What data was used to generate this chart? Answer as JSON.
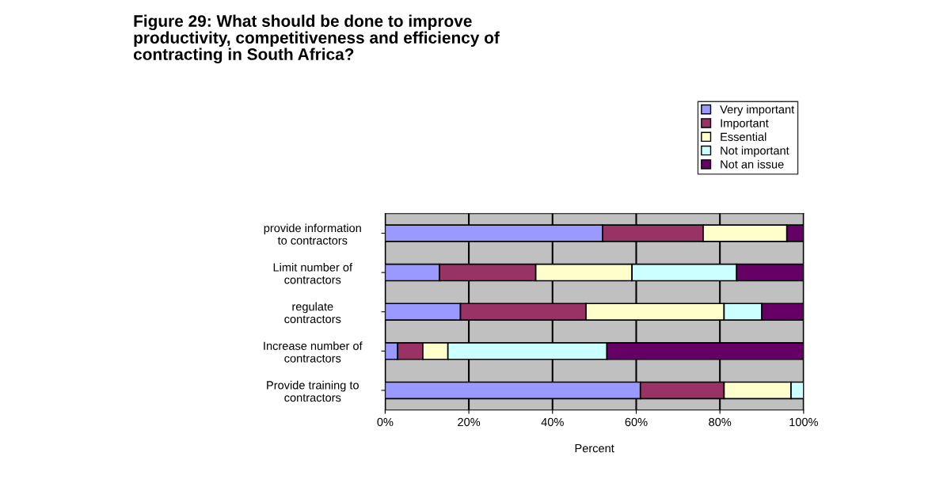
{
  "chart_data": {
    "type": "bar",
    "orientation": "horizontal",
    "stacked": true,
    "title": "Figure 29: What should be done to improve\nproductivity, competitiveness and efficiency of\ncontracting in South Africa?",
    "xlabel": "Percent",
    "categories": [
      "provide information\nto contractors",
      "Limit number of\ncontractors",
      "regulate\ncontractors",
      "Increase number of\ncontractors",
      "Provide training to\ncontractors"
    ],
    "series": [
      {
        "name": "Very important",
        "color": "#9999ff",
        "values": [
          52,
          13,
          18,
          3,
          61
        ]
      },
      {
        "name": "Important",
        "color": "#993366",
        "values": [
          24,
          23,
          30,
          6,
          20
        ]
      },
      {
        "name": "Essential",
        "color": "#ffffcc",
        "values": [
          20,
          23,
          33,
          6,
          16
        ]
      },
      {
        "name": "Not important",
        "color": "#ccffff",
        "values": [
          null,
          25,
          9,
          38,
          3
        ]
      },
      {
        "name": "Not an issue",
        "color": "#660066",
        "values": [
          4,
          16,
          10,
          47,
          null
        ]
      }
    ],
    "xlim": [
      0,
      100
    ],
    "xticks": [
      {
        "value": 0,
        "label": "0%"
      },
      {
        "value": 20,
        "label": "20%"
      },
      {
        "value": 40,
        "label": "40%"
      },
      {
        "value": 60,
        "label": "60%"
      },
      {
        "value": 80,
        "label": "80%"
      },
      {
        "value": 100,
        "label": "100%"
      }
    ],
    "grid": "x",
    "legend": "top right"
  }
}
